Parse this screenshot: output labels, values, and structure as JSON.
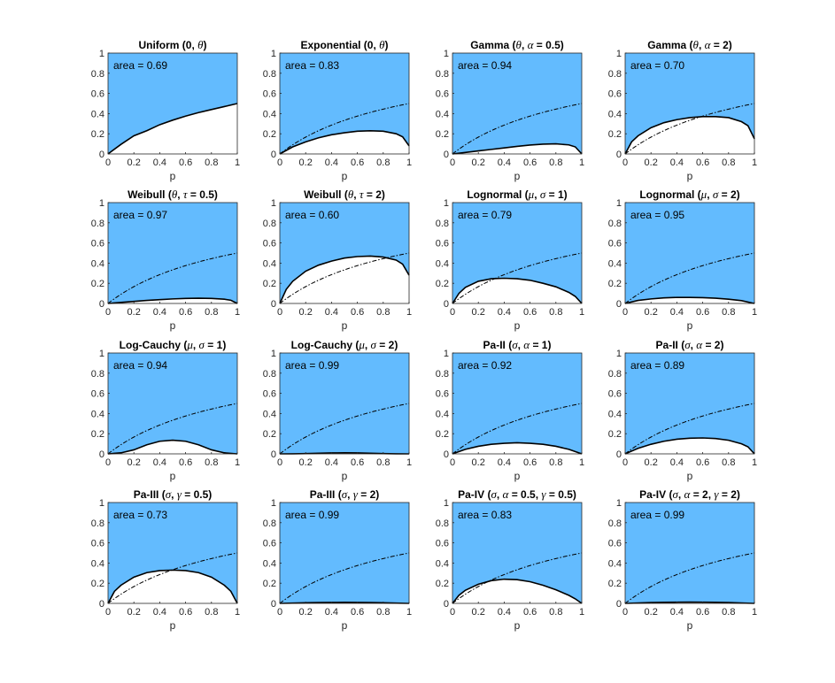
{
  "colors": {
    "fill": "#63bbfe",
    "curve": "#000000",
    "axis": "#262626",
    "background": "#ffffff"
  },
  "chart_data": [
    {
      "type": "area",
      "title": "Uniform (0, θ)",
      "area_label": "area = 0.69",
      "xlabel": "p",
      "xlim": [
        0,
        1
      ],
      "ylim": [
        0,
        1
      ],
      "xticks": [
        "0",
        "0.2",
        "0.4",
        "0.6",
        "0.8",
        "1"
      ],
      "yticks": [
        "0",
        "0.2",
        "0.4",
        "0.6",
        "0.8",
        "1"
      ],
      "reference_curve": false,
      "curve": {
        "x": [
          0,
          0.1,
          0.2,
          0.3,
          0.4,
          0.5,
          0.6,
          0.7,
          0.8,
          0.9,
          1
        ],
        "y": [
          0,
          0.095,
          0.18,
          0.23,
          0.29,
          0.335,
          0.375,
          0.41,
          0.44,
          0.47,
          0.5
        ]
      }
    },
    {
      "type": "area",
      "title": "Exponential (0, θ)",
      "area_label": "area = 0.83",
      "xlabel": "p",
      "xlim": [
        0,
        1
      ],
      "ylim": [
        0,
        1
      ],
      "xticks": [
        "0",
        "0.2",
        "0.4",
        "0.6",
        "0.8",
        "1"
      ],
      "yticks": [
        "0",
        "0.2",
        "0.4",
        "0.6",
        "0.8",
        "1"
      ],
      "reference_curve": true,
      "curve": {
        "x": [
          0,
          0.1,
          0.2,
          0.3,
          0.4,
          0.5,
          0.6,
          0.7,
          0.8,
          0.9,
          0.95,
          1
        ],
        "y": [
          0,
          0.07,
          0.12,
          0.16,
          0.19,
          0.21,
          0.225,
          0.23,
          0.225,
          0.2,
          0.17,
          0.08
        ]
      }
    },
    {
      "type": "area",
      "title": "Gamma (θ, α = 0.5)",
      "area_label": "area = 0.94",
      "xlabel": "p",
      "xlim": [
        0,
        1
      ],
      "ylim": [
        0,
        1
      ],
      "xticks": [
        "0",
        "0.2",
        "0.4",
        "0.6",
        "0.8",
        "1"
      ],
      "yticks": [
        "0",
        "0.2",
        "0.4",
        "0.6",
        "0.8",
        "1"
      ],
      "reference_curve": true,
      "curve": {
        "x": [
          0,
          0.1,
          0.2,
          0.3,
          0.4,
          0.5,
          0.6,
          0.7,
          0.8,
          0.9,
          0.95,
          1
        ],
        "y": [
          0,
          0.015,
          0.03,
          0.045,
          0.06,
          0.075,
          0.088,
          0.097,
          0.1,
          0.09,
          0.07,
          0
        ]
      }
    },
    {
      "type": "area",
      "title": "Gamma (θ, α = 2)",
      "area_label": "area = 0.70",
      "xlabel": "p",
      "xlim": [
        0,
        1
      ],
      "ylim": [
        0,
        1
      ],
      "xticks": [
        "0",
        "0.2",
        "0.4",
        "0.6",
        "0.8",
        "1"
      ],
      "yticks": [
        "0",
        "0.2",
        "0.4",
        "0.6",
        "0.8",
        "1"
      ],
      "reference_curve": true,
      "curve": {
        "x": [
          0,
          0.05,
          0.1,
          0.2,
          0.3,
          0.4,
          0.5,
          0.6,
          0.7,
          0.8,
          0.9,
          0.95,
          1
        ],
        "y": [
          0,
          0.12,
          0.18,
          0.26,
          0.31,
          0.34,
          0.36,
          0.37,
          0.37,
          0.36,
          0.32,
          0.28,
          0.15
        ]
      }
    },
    {
      "type": "area",
      "title": "Weibull (θ, τ = 0.5)",
      "area_label": "area = 0.97",
      "xlabel": "p",
      "xlim": [
        0,
        1
      ],
      "ylim": [
        0,
        1
      ],
      "xticks": [
        "0",
        "0.2",
        "0.4",
        "0.6",
        "0.8",
        "1"
      ],
      "yticks": [
        "0",
        "0.2",
        "0.4",
        "0.6",
        "0.8",
        "1"
      ],
      "reference_curve": true,
      "curve": {
        "x": [
          0,
          0.1,
          0.2,
          0.3,
          0.4,
          0.5,
          0.6,
          0.7,
          0.8,
          0.9,
          0.95,
          1
        ],
        "y": [
          0,
          0.01,
          0.02,
          0.03,
          0.038,
          0.045,
          0.05,
          0.052,
          0.05,
          0.042,
          0.032,
          0
        ]
      }
    },
    {
      "type": "area",
      "title": "Weibull (θ, τ = 2)",
      "area_label": "area = 0.60",
      "xlabel": "p",
      "xlim": [
        0,
        1
      ],
      "ylim": [
        0,
        1
      ],
      "xticks": [
        "0",
        "0.2",
        "0.4",
        "0.6",
        "0.8",
        "1"
      ],
      "yticks": [
        "0",
        "0.2",
        "0.4",
        "0.6",
        "0.8",
        "1"
      ],
      "reference_curve": true,
      "curve": {
        "x": [
          0,
          0.05,
          0.1,
          0.2,
          0.3,
          0.4,
          0.5,
          0.6,
          0.7,
          0.8,
          0.9,
          0.95,
          1
        ],
        "y": [
          0,
          0.14,
          0.22,
          0.32,
          0.38,
          0.42,
          0.45,
          0.465,
          0.47,
          0.46,
          0.43,
          0.39,
          0.28
        ]
      }
    },
    {
      "type": "area",
      "title": "Lognormal (μ, σ = 1)",
      "area_label": "area = 0.79",
      "xlabel": "p",
      "xlim": [
        0,
        1
      ],
      "ylim": [
        0,
        1
      ],
      "xticks": [
        "0",
        "0.2",
        "0.4",
        "0.6",
        "0.8",
        "1"
      ],
      "yticks": [
        "0",
        "0.2",
        "0.4",
        "0.6",
        "0.8",
        "1"
      ],
      "reference_curve": true,
      "curve": {
        "x": [
          0,
          0.05,
          0.1,
          0.2,
          0.3,
          0.4,
          0.5,
          0.6,
          0.7,
          0.8,
          0.9,
          0.95,
          1
        ],
        "y": [
          0,
          0.1,
          0.16,
          0.22,
          0.245,
          0.25,
          0.245,
          0.23,
          0.2,
          0.165,
          0.11,
          0.07,
          0
        ]
      }
    },
    {
      "type": "area",
      "title": "Lognormal (μ, σ = 2)",
      "area_label": "area = 0.95",
      "xlabel": "p",
      "xlim": [
        0,
        1
      ],
      "ylim": [
        0,
        1
      ],
      "xticks": [
        "0",
        "0.2",
        "0.4",
        "0.6",
        "0.8",
        "1"
      ],
      "yticks": [
        "0",
        "0.2",
        "0.4",
        "0.6",
        "0.8",
        "1"
      ],
      "reference_curve": true,
      "curve": {
        "x": [
          0,
          0.1,
          0.2,
          0.3,
          0.4,
          0.5,
          0.6,
          0.7,
          0.8,
          0.9,
          1
        ],
        "y": [
          0,
          0.03,
          0.045,
          0.055,
          0.06,
          0.06,
          0.058,
          0.052,
          0.042,
          0.028,
          0
        ]
      }
    },
    {
      "type": "area",
      "title": "Log-Cauchy (μ, σ = 1)",
      "area_label": "area = 0.94",
      "xlabel": "p",
      "xlim": [
        0,
        1
      ],
      "ylim": [
        0,
        1
      ],
      "xticks": [
        "0",
        "0.2",
        "0.4",
        "0.6",
        "0.8",
        "1"
      ],
      "yticks": [
        "0",
        "0.2",
        "0.4",
        "0.6",
        "0.8",
        "1"
      ],
      "reference_curve": true,
      "curve": {
        "x": [
          0,
          0.1,
          0.2,
          0.3,
          0.4,
          0.5,
          0.6,
          0.7,
          0.8,
          0.9,
          1
        ],
        "y": [
          0,
          0.01,
          0.04,
          0.09,
          0.125,
          0.135,
          0.125,
          0.09,
          0.04,
          0.01,
          0
        ]
      }
    },
    {
      "type": "area",
      "title": "Log-Cauchy (μ, σ = 2)",
      "area_label": "area = 0.99",
      "xlabel": "p",
      "xlim": [
        0,
        1
      ],
      "ylim": [
        0,
        1
      ],
      "xticks": [
        "0",
        "0.2",
        "0.4",
        "0.6",
        "0.8",
        "1"
      ],
      "yticks": [
        "0",
        "0.2",
        "0.4",
        "0.6",
        "0.8",
        "1"
      ],
      "reference_curve": true,
      "curve": {
        "x": [
          0,
          0.1,
          0.2,
          0.3,
          0.4,
          0.5,
          0.6,
          0.7,
          0.8,
          0.9,
          1
        ],
        "y": [
          0,
          0.001,
          0.003,
          0.006,
          0.009,
          0.01,
          0.009,
          0.006,
          0.003,
          0.001,
          0
        ]
      }
    },
    {
      "type": "area",
      "title": "Pa-II (σ, α = 1)",
      "area_label": "area = 0.92",
      "xlabel": "p",
      "xlim": [
        0,
        1
      ],
      "ylim": [
        0,
        1
      ],
      "xticks": [
        "0",
        "0.2",
        "0.4",
        "0.6",
        "0.8",
        "1"
      ],
      "yticks": [
        "0",
        "0.2",
        "0.4",
        "0.6",
        "0.8",
        "1"
      ],
      "reference_curve": true,
      "curve": {
        "x": [
          0,
          0.1,
          0.2,
          0.3,
          0.4,
          0.5,
          0.6,
          0.7,
          0.8,
          0.9,
          1
        ],
        "y": [
          0,
          0.045,
          0.075,
          0.095,
          0.105,
          0.11,
          0.105,
          0.095,
          0.075,
          0.045,
          0
        ]
      }
    },
    {
      "type": "area",
      "title": "Pa-II (σ, α = 2)",
      "area_label": "area = 0.89",
      "xlabel": "p",
      "xlim": [
        0,
        1
      ],
      "ylim": [
        0,
        1
      ],
      "xticks": [
        "0",
        "0.2",
        "0.4",
        "0.6",
        "0.8",
        "1"
      ],
      "yticks": [
        "0",
        "0.2",
        "0.4",
        "0.6",
        "0.8",
        "1"
      ],
      "reference_curve": true,
      "curve": {
        "x": [
          0,
          0.1,
          0.2,
          0.3,
          0.4,
          0.5,
          0.6,
          0.7,
          0.8,
          0.9,
          0.95,
          1
        ],
        "y": [
          0,
          0.055,
          0.095,
          0.125,
          0.145,
          0.155,
          0.158,
          0.152,
          0.135,
          0.1,
          0.07,
          0
        ]
      }
    },
    {
      "type": "area",
      "title": "Pa-III (σ, γ = 0.5)",
      "area_label": "area = 0.73",
      "xlabel": "p",
      "xlim": [
        0,
        1
      ],
      "ylim": [
        0,
        1
      ],
      "xticks": [
        "0",
        "0.2",
        "0.4",
        "0.6",
        "0.8",
        "1"
      ],
      "yticks": [
        "0",
        "0.2",
        "0.4",
        "0.6",
        "0.8",
        "1"
      ],
      "reference_curve": true,
      "curve": {
        "x": [
          0,
          0.05,
          0.1,
          0.2,
          0.3,
          0.4,
          0.5,
          0.6,
          0.7,
          0.8,
          0.9,
          0.95,
          1
        ],
        "y": [
          0,
          0.12,
          0.18,
          0.26,
          0.305,
          0.325,
          0.33,
          0.325,
          0.305,
          0.26,
          0.18,
          0.12,
          0
        ]
      }
    },
    {
      "type": "area",
      "title": "Pa-III (σ, γ = 2)",
      "area_label": "area = 0.99",
      "xlabel": "p",
      "xlim": [
        0,
        1
      ],
      "ylim": [
        0,
        1
      ],
      "xticks": [
        "0",
        "0.2",
        "0.4",
        "0.6",
        "0.8",
        "1"
      ],
      "yticks": [
        "0",
        "0.2",
        "0.4",
        "0.6",
        "0.8",
        "1"
      ],
      "reference_curve": true,
      "curve": {
        "x": [
          0,
          0.1,
          0.2,
          0.3,
          0.4,
          0.5,
          0.6,
          0.7,
          0.8,
          0.9,
          1
        ],
        "y": [
          0,
          0.003,
          0.006,
          0.008,
          0.009,
          0.01,
          0.009,
          0.008,
          0.006,
          0.003,
          0
        ]
      }
    },
    {
      "type": "area",
      "title": "Pa-IV (σ, α = 0.5, γ = 0.5)",
      "area_label": "area = 0.83",
      "xlabel": "p",
      "xlim": [
        0,
        1
      ],
      "ylim": [
        0,
        1
      ],
      "xticks": [
        "0",
        "0.2",
        "0.4",
        "0.6",
        "0.8",
        "1"
      ],
      "yticks": [
        "0",
        "0.2",
        "0.4",
        "0.6",
        "0.8",
        "1"
      ],
      "reference_curve": true,
      "curve": {
        "x": [
          0,
          0.05,
          0.1,
          0.2,
          0.3,
          0.4,
          0.5,
          0.6,
          0.7,
          0.8,
          0.9,
          0.95,
          1
        ],
        "y": [
          0,
          0.08,
          0.13,
          0.19,
          0.225,
          0.24,
          0.235,
          0.215,
          0.18,
          0.135,
          0.08,
          0.045,
          0
        ]
      }
    },
    {
      "type": "area",
      "title": "Pa-IV (σ, α = 2, γ = 2)",
      "area_label": "area = 0.99",
      "xlabel": "p",
      "xlim": [
        0,
        1
      ],
      "ylim": [
        0,
        1
      ],
      "xticks": [
        "0",
        "0.2",
        "0.4",
        "0.6",
        "0.8",
        "1"
      ],
      "yticks": [
        "0",
        "0.2",
        "0.4",
        "0.6",
        "0.8",
        "1"
      ],
      "reference_curve": true,
      "curve": {
        "x": [
          0,
          0.1,
          0.2,
          0.3,
          0.4,
          0.5,
          0.6,
          0.7,
          0.8,
          0.9,
          1
        ],
        "y": [
          0,
          0.004,
          0.008,
          0.011,
          0.012,
          0.013,
          0.012,
          0.011,
          0.008,
          0.004,
          0
        ]
      }
    }
  ]
}
